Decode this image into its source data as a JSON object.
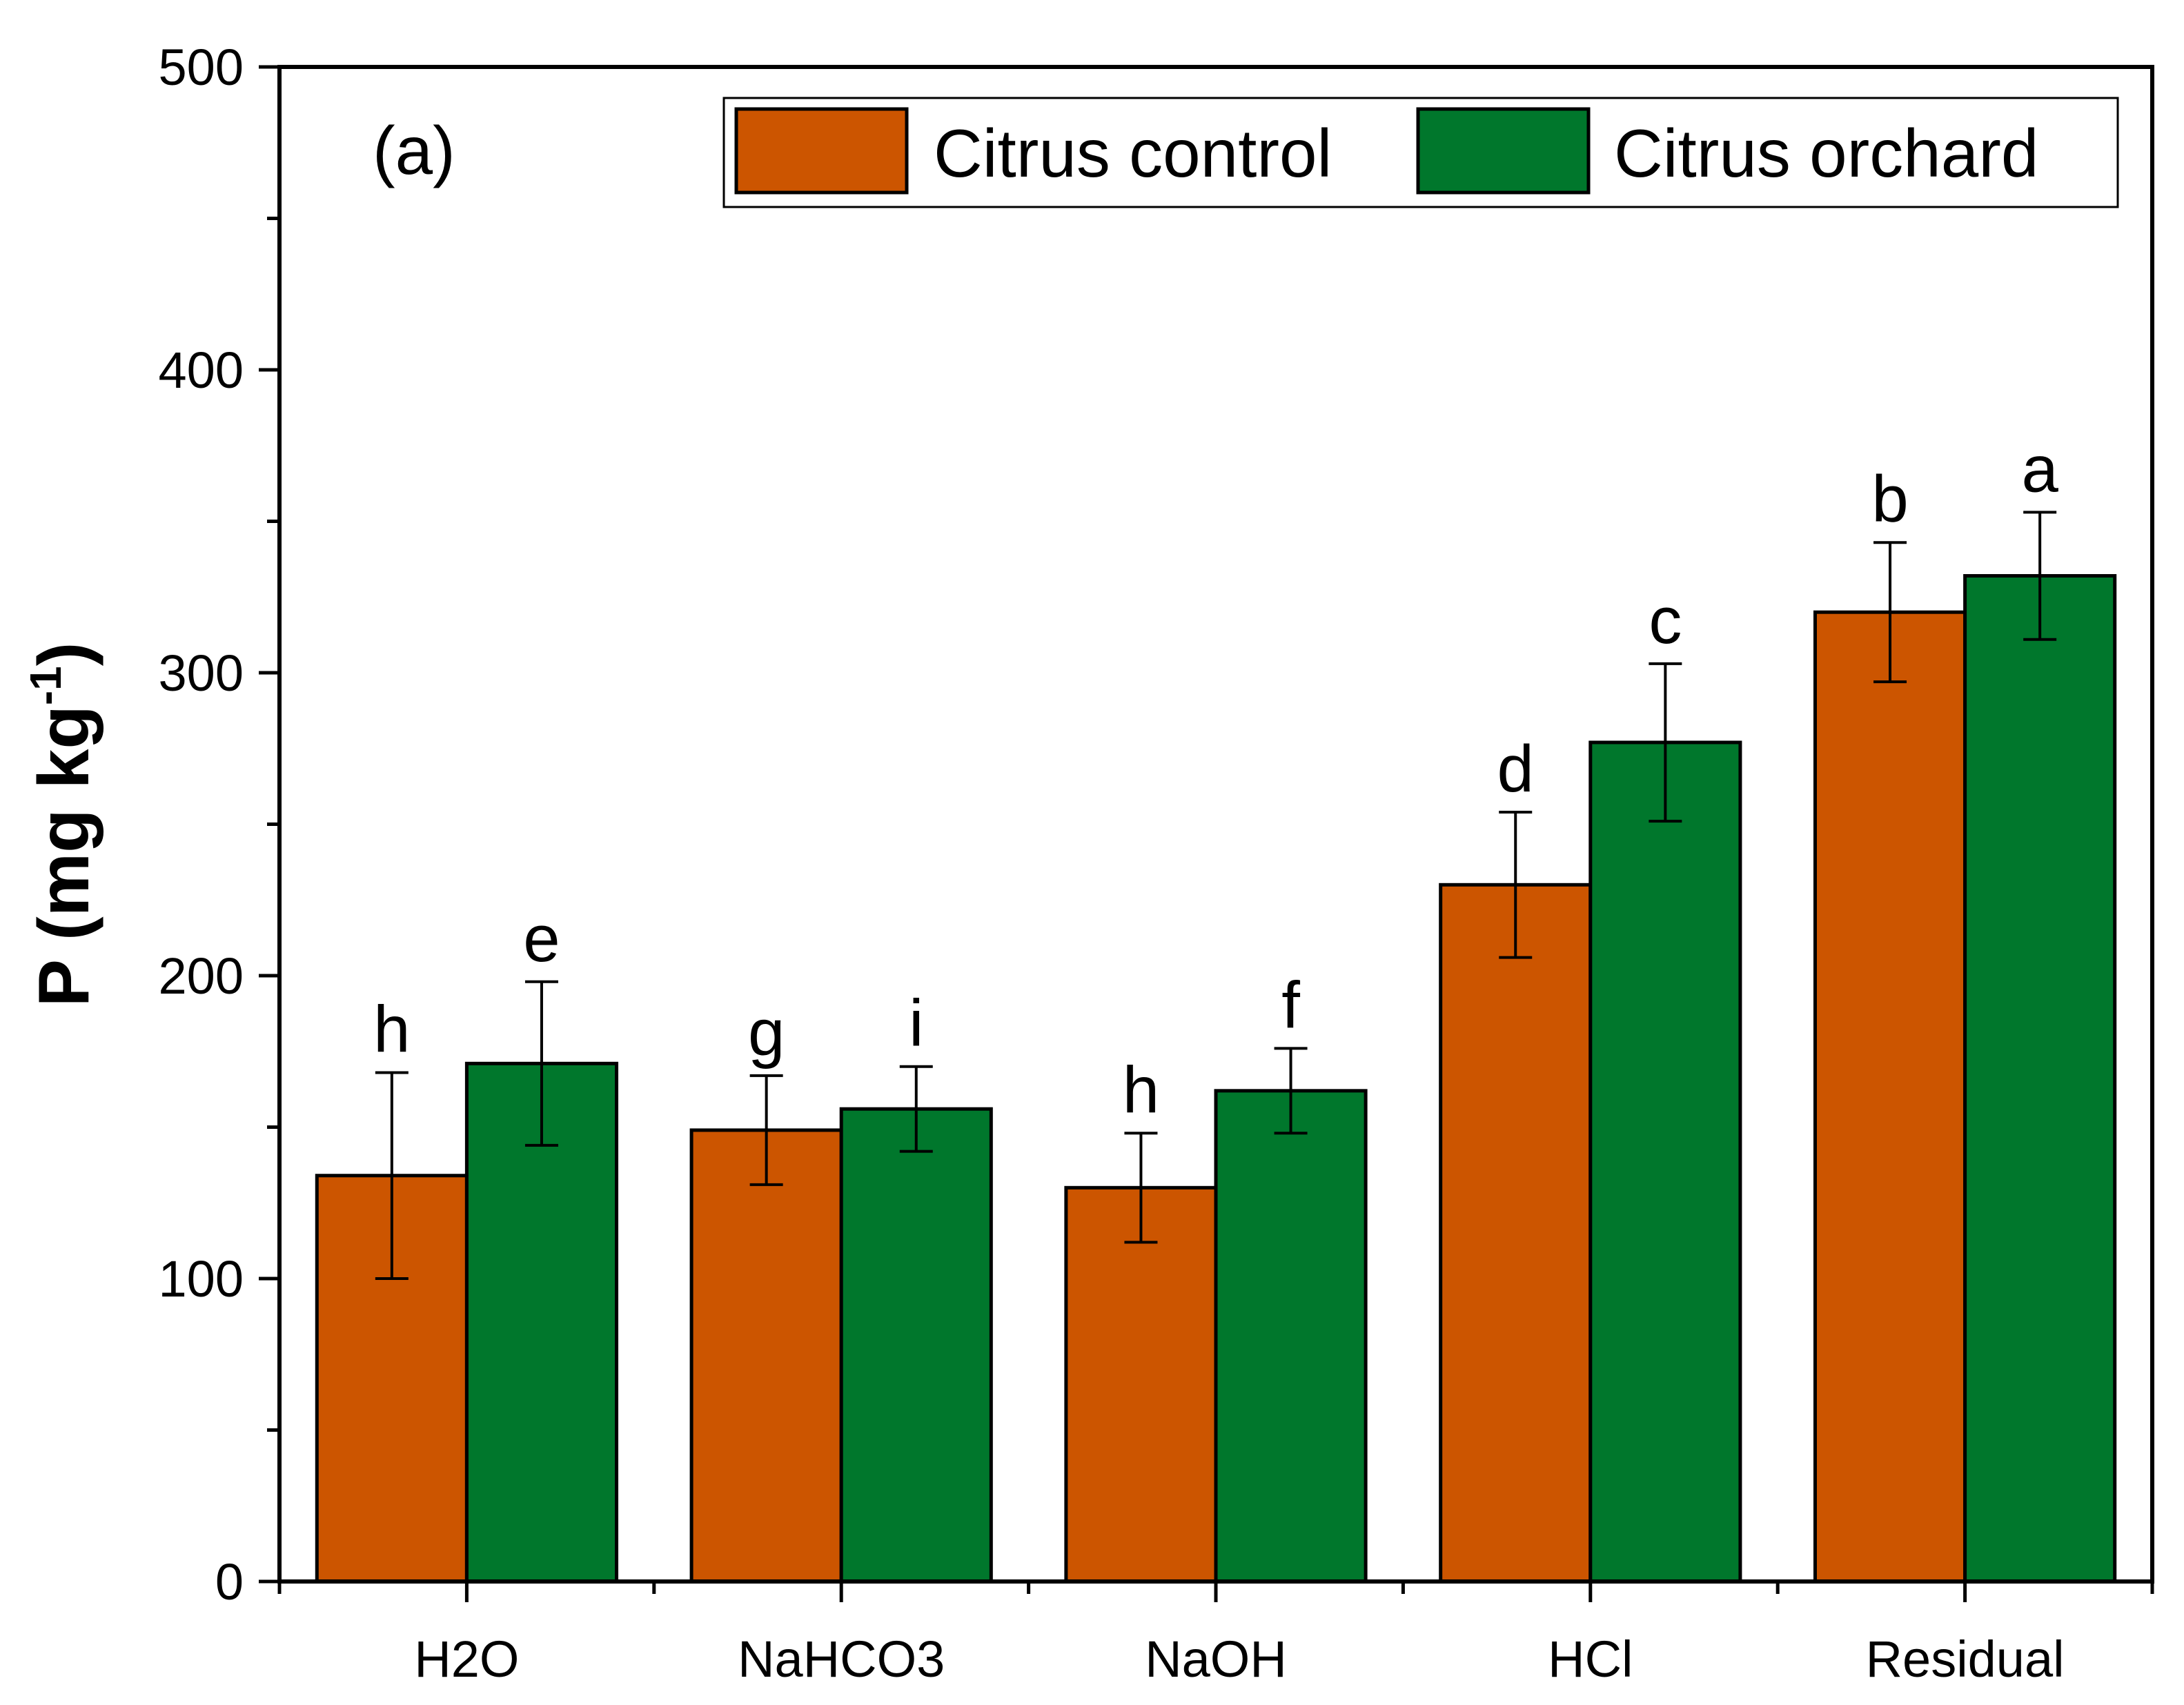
{
  "chart_data": {
    "type": "bar",
    "panel_label": "(a)",
    "categories": [
      "H2O",
      "NaHCO3",
      "NaOH",
      "HCl",
      "Residual"
    ],
    "series": [
      {
        "name": "Citrus control",
        "color": "#cc5500",
        "values": [
          134,
          149,
          130,
          230,
          320
        ],
        "errors": [
          34,
          18,
          18,
          24,
          23
        ],
        "labels": [
          "h",
          "g",
          "h",
          "d",
          "b"
        ]
      },
      {
        "name": "Citrus orchard",
        "color": "#00772c",
        "values": [
          171,
          156,
          162,
          277,
          332
        ],
        "errors": [
          27,
          14,
          14,
          26,
          21
        ],
        "labels": [
          "e",
          "i",
          "f",
          "c",
          "a"
        ]
      }
    ],
    "xlabel": "",
    "ylabel_main": "P (mg kg",
    "ylabel_sup": "-1",
    "ylabel_end": ")",
    "ylim": [
      0,
      500
    ],
    "yticks": [
      "0",
      "100",
      "200",
      "300",
      "400",
      "500"
    ],
    "legend_position": "top-right",
    "grid": false
  }
}
